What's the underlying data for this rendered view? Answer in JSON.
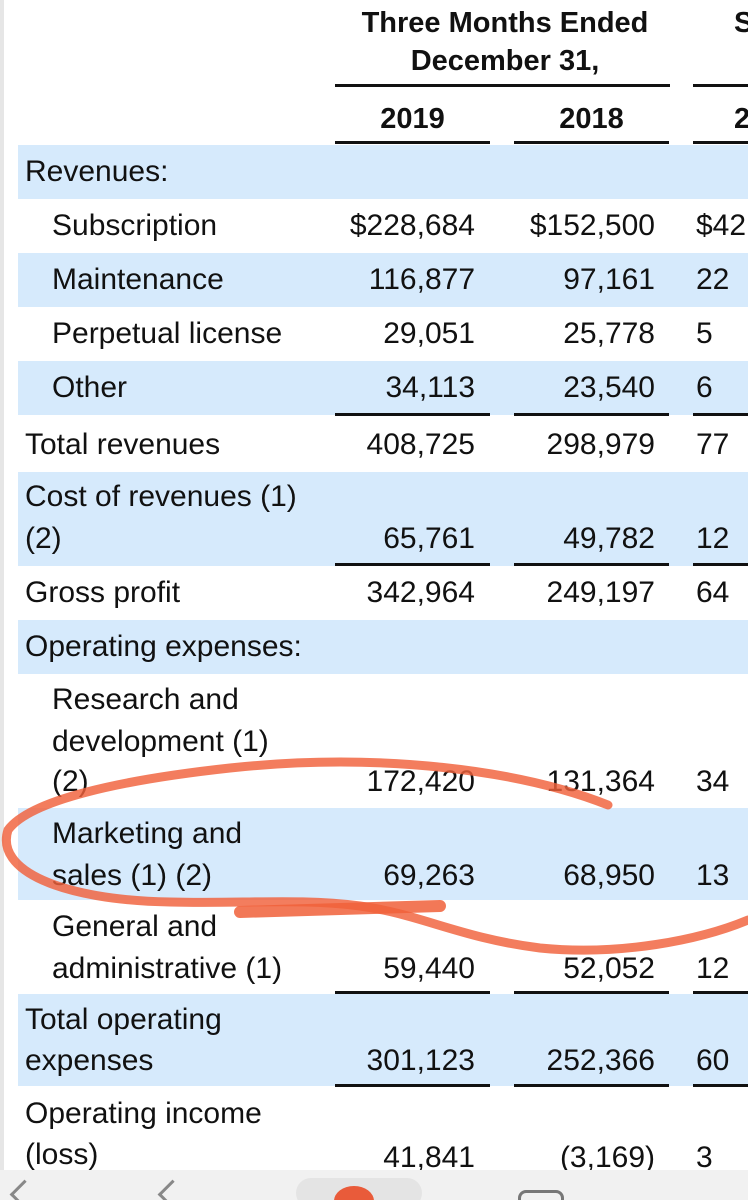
{
  "header": {
    "period_line1": "Three Months Ended",
    "period_line2": "December 31,",
    "col3_partial": "S",
    "year_1": "2019",
    "year_2": "2018",
    "year_3_partial": "2"
  },
  "rows": {
    "revenues": {
      "label": "Revenues:"
    },
    "subscription": {
      "label": "Subscription",
      "v1": "$228,684",
      "v2": "$152,500",
      "v3": "$42"
    },
    "maintenance": {
      "label": "Maintenance",
      "v1": "116,877",
      "v2": "97,161",
      "v3": "22"
    },
    "perpetual": {
      "label": "Perpetual license",
      "v1": "29,051",
      "v2": "25,778",
      "v3": "5"
    },
    "other": {
      "label": "Other",
      "v1": "34,113",
      "v2": "23,540",
      "v3": "6"
    },
    "total_revenues": {
      "label": "Total revenues",
      "v1": "408,725",
      "v2": "298,979",
      "v3": "77"
    },
    "cost_revenues": {
      "label_line1": "Cost of revenues (1)",
      "label_line2": "(2)",
      "v1": "65,761",
      "v2": "49,782",
      "v3": "12"
    },
    "gross_profit": {
      "label": "Gross profit",
      "v1": "342,964",
      "v2": "249,197",
      "v3": "64"
    },
    "opex": {
      "label": "Operating expenses:"
    },
    "rnd": {
      "label_line1": "Research and",
      "label_line2": "development (1)",
      "label_line3": "(2)",
      "v1": "172,420",
      "v2": "131,364",
      "v3": "34"
    },
    "marketing": {
      "label_line1": "Marketing and",
      "label_line2": "sales (1) (2)",
      "v1": "69,263",
      "v2": "68,950",
      "v3": "13"
    },
    "gna": {
      "label_line1": "General and",
      "label_line2": "administrative (1)",
      "v1": "59,440",
      "v2": "52,052",
      "v3": "12"
    },
    "total_opex": {
      "label_line1": "Total operating",
      "label_line2": "expenses",
      "v1": "301,123",
      "v2": "252,366",
      "v3": "60"
    },
    "op_income": {
      "label_line1": "Operating income",
      "label_line2": "(loss)",
      "v1": "41,841",
      "v2": "(3,169)",
      "v3": "3"
    }
  },
  "colors": {
    "row_shade": "#d6eafc",
    "annotation": "#f0603a"
  }
}
